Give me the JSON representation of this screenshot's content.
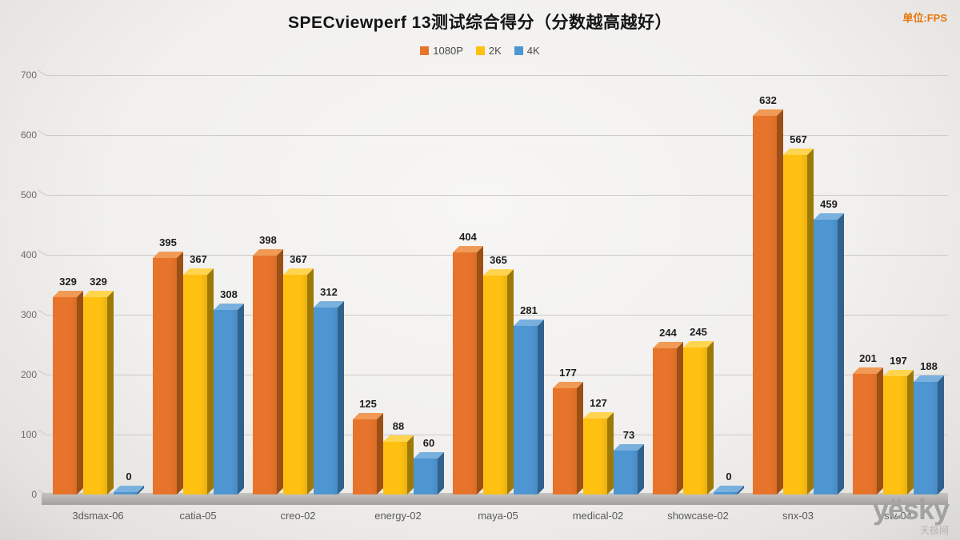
{
  "title": "SPECviewperf 13测试综合得分（分数越高越好）",
  "unit_label": "单位:FPS",
  "watermark": {
    "logo": "yësky",
    "sub": "天极网"
  },
  "chart_data": {
    "type": "bar",
    "title": "SPECviewperf 13测试综合得分（分数越高越好）",
    "unit": "FPS",
    "categories": [
      "3dsmax-06",
      "catia-05",
      "creo-02",
      "energy-02",
      "maya-05",
      "medical-02",
      "showcase-02",
      "snx-03",
      "sw-04"
    ],
    "series": [
      {
        "name": "1080P",
        "color": "#e8742c",
        "side_color": "#9c4f15",
        "top_color": "#f09a55",
        "values": [
          329,
          395,
          398,
          125,
          404,
          177,
          244,
          632,
          201
        ]
      },
      {
        "name": "2K",
        "color": "#ffc011",
        "side_color": "#9d7a08",
        "top_color": "#ffd44f",
        "values": [
          329,
          367,
          367,
          88,
          365,
          127,
          245,
          567,
          197
        ]
      },
      {
        "name": "4K",
        "color": "#4e96d2",
        "side_color": "#31618d",
        "top_color": "#79b1de",
        "values": [
          0,
          308,
          312,
          60,
          281,
          73,
          0,
          459,
          188
        ]
      }
    ],
    "ylim": [
      0,
      700
    ],
    "ytick_step": 100,
    "grid": true,
    "legend_position": "top",
    "style": "3d-bars"
  }
}
